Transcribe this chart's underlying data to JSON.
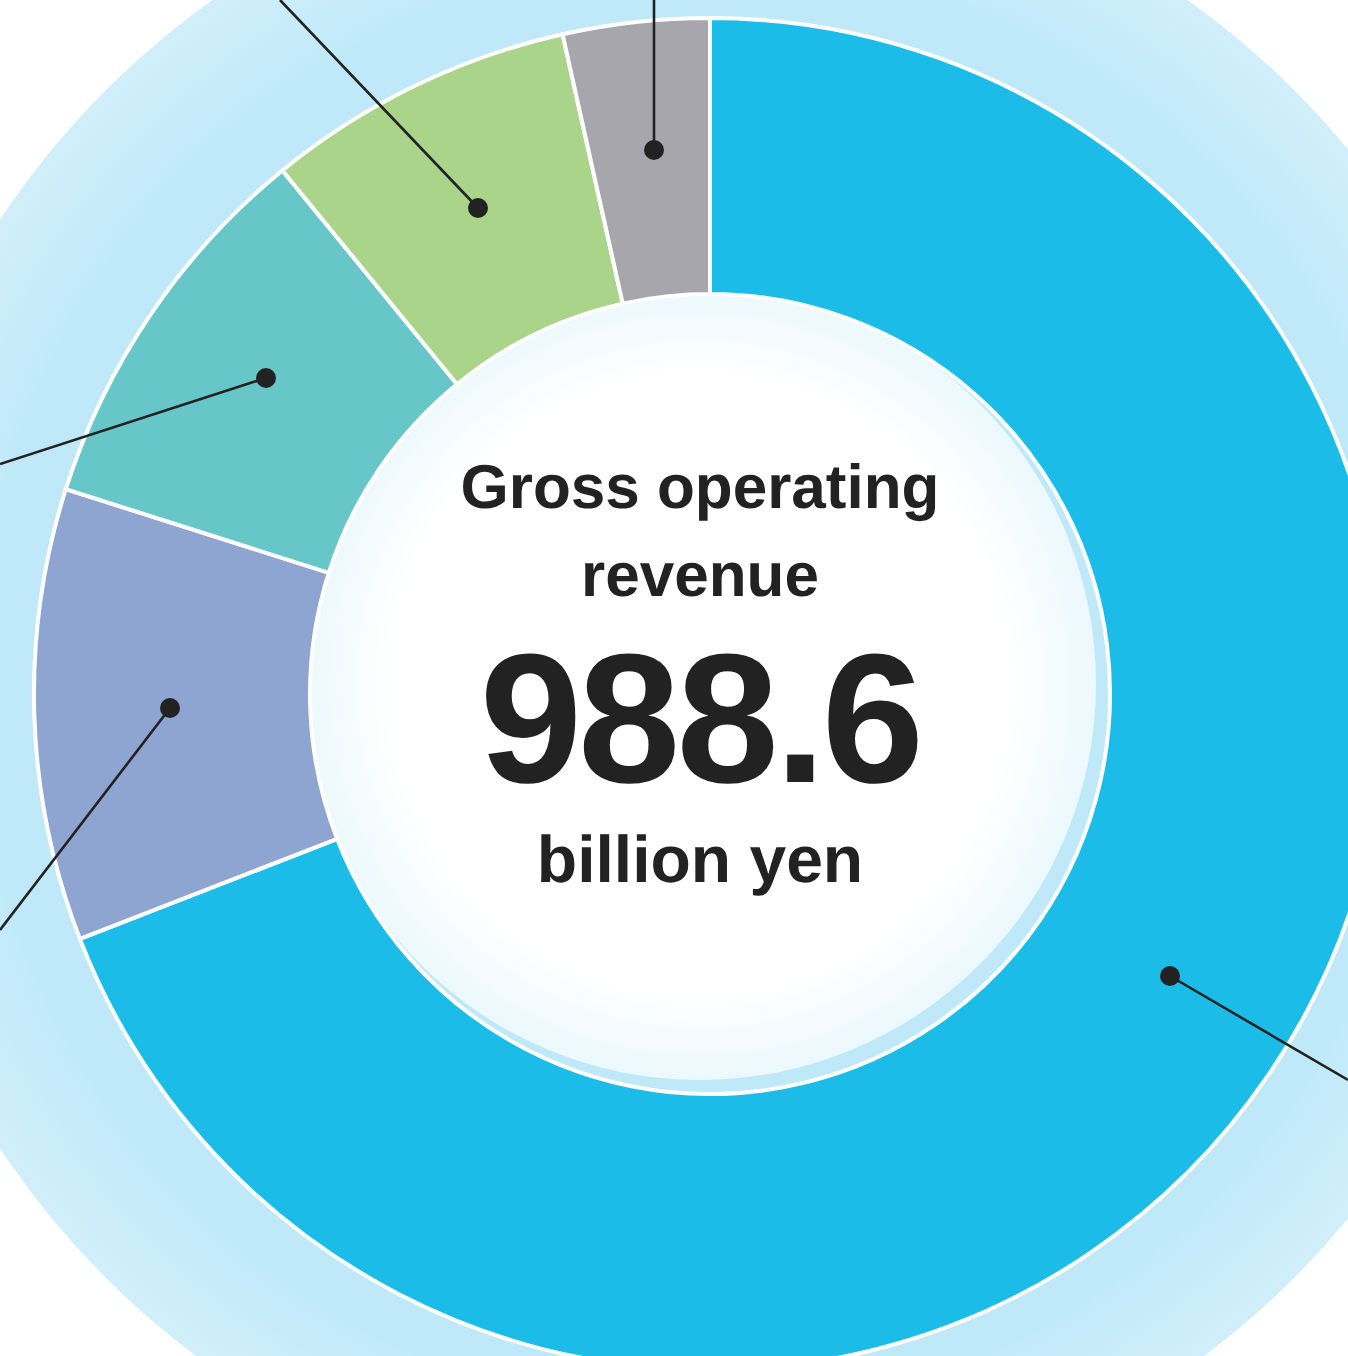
{
  "chart_data": {
    "type": "donut",
    "title": "Gross operating revenue",
    "annotations": [
      "988.6",
      "billion yen"
    ],
    "categories": [
      null,
      null,
      null,
      null,
      null
    ],
    "values": [
      69.1,
      10.8,
      9.2,
      7.4,
      3.5
    ],
    "colors": [
      "#1bbde8",
      "#8fa5d1",
      "#66c6c8",
      "#a9d48a",
      "#a8a6ad"
    ],
    "legend": false
  }
}
